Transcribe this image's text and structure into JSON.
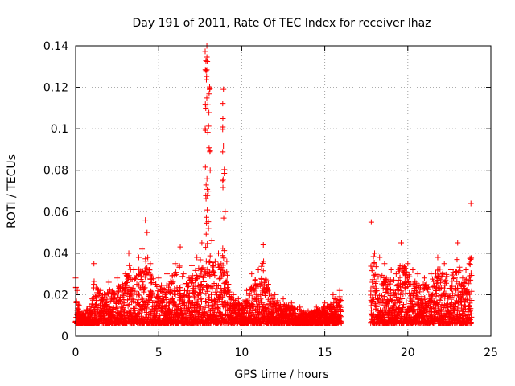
{
  "chart_data": {
    "type": "scatter",
    "title": "Day 191 of 2011, Rate Of TEC Index for receiver lhaz",
    "xlabel": "GPS time / hours",
    "ylabel": "ROTI / TECUs",
    "xlim": [
      0,
      25
    ],
    "ylim": [
      0,
      0.14
    ],
    "x_ticks": [
      0,
      5,
      10,
      15,
      20,
      25
    ],
    "y_ticks": [
      0,
      0.02,
      0.04,
      0.06,
      0.08,
      0.1,
      0.12,
      0.14
    ],
    "x_tick_labels": [
      "0",
      "5",
      "10",
      "15",
      "20",
      "25"
    ],
    "y_tick_labels": [
      "0",
      "0.02",
      "0.04",
      "0.06",
      "0.08",
      "0.1",
      "0.12",
      "0.14"
    ],
    "grid": true,
    "marker": "+",
    "color": "#ff0000",
    "series": [
      {
        "name": "ROTI",
        "note": "dense cloud of points from 0 to ~16 h and ~17.8 to ~23.8 h; envelope samples listed",
        "x": [
          0.0,
          0.1,
          0.2,
          0.5,
          1.0,
          1.1,
          1.5,
          2.0,
          2.5,
          3.0,
          3.2,
          3.5,
          3.8,
          4.0,
          4.2,
          4.3,
          4.5,
          5.0,
          5.5,
          6.0,
          6.3,
          6.5,
          7.0,
          7.3,
          7.6,
          7.8,
          7.9,
          8.0,
          8.1,
          8.2,
          8.4,
          8.6,
          8.9,
          9.0,
          9.2,
          9.5,
          9.8,
          10.0,
          10.3,
          10.6,
          11.0,
          11.3,
          11.6,
          12.0,
          12.5,
          13.0,
          13.5,
          14.0,
          14.5,
          15.0,
          15.5,
          15.9,
          17.8,
          18.0,
          18.3,
          18.6,
          19.0,
          19.3,
          19.6,
          20.0,
          20.3,
          20.6,
          21.0,
          21.4,
          21.8,
          22.2,
          22.6,
          23.0,
          23.3,
          23.5,
          23.7,
          23.8
        ],
        "y": [
          0.028,
          0.022,
          0.015,
          0.012,
          0.018,
          0.035,
          0.022,
          0.026,
          0.028,
          0.03,
          0.04,
          0.032,
          0.038,
          0.042,
          0.056,
          0.05,
          0.035,
          0.028,
          0.03,
          0.035,
          0.043,
          0.03,
          0.034,
          0.038,
          0.045,
          0.1,
          0.14,
          0.052,
          0.08,
          0.046,
          0.036,
          0.04,
          0.119,
          0.06,
          0.025,
          0.02,
          0.018,
          0.015,
          0.022,
          0.03,
          0.032,
          0.044,
          0.025,
          0.02,
          0.018,
          0.016,
          0.014,
          0.012,
          0.014,
          0.016,
          0.02,
          0.022,
          0.055,
          0.04,
          0.038,
          0.035,
          0.032,
          0.03,
          0.045,
          0.035,
          0.032,
          0.03,
          0.028,
          0.03,
          0.038,
          0.035,
          0.032,
          0.045,
          0.028,
          0.032,
          0.035,
          0.064
        ]
      }
    ]
  }
}
